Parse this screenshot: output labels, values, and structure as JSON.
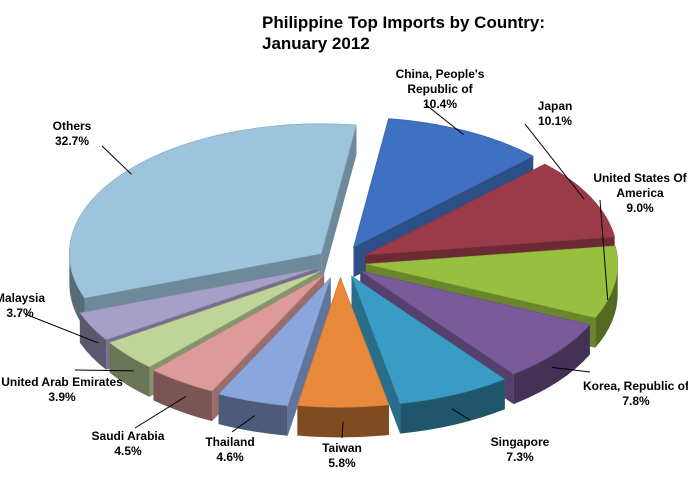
{
  "chart_data": {
    "type": "pie",
    "title": "Philippine Top Imports by Country:",
    "subtitle": "January 2012",
    "slices": [
      {
        "label_lines": [
          "China, People's",
          "Republic of"
        ],
        "value": 10.4,
        "value_text": "10.4%",
        "color": "#4070c0"
      },
      {
        "label_lines": [
          "Japan"
        ],
        "value": 10.1,
        "value_text": "10.1%",
        "color": "#9b3b4a"
      },
      {
        "label_lines": [
          "United States Of",
          "America"
        ],
        "value": 9.0,
        "value_text": "9.0%",
        "color": "#98c040"
      },
      {
        "label_lines": [
          "Korea, Republic of"
        ],
        "value": 7.8,
        "value_text": "7.8%",
        "color": "#7a5a9a"
      },
      {
        "label_lines": [
          "Singapore"
        ],
        "value": 7.3,
        "value_text": "7.3%",
        "color": "#3a9cc4"
      },
      {
        "label_lines": [
          "Taiwan"
        ],
        "value": 5.8,
        "value_text": "5.8%",
        "color": "#e8893c"
      },
      {
        "label_lines": [
          "Thailand"
        ],
        "value": 4.6,
        "value_text": "4.6%",
        "color": "#8aa6dc"
      },
      {
        "label_lines": [
          "Saudi Arabia"
        ],
        "value": 4.5,
        "value_text": "4.5%",
        "color": "#dc9a98"
      },
      {
        "label_lines": [
          "United Arab Emirates"
        ],
        "value": 3.9,
        "value_text": "3.9%",
        "color": "#c0d49a"
      },
      {
        "label_lines": [
          "Malaysia"
        ],
        "value": 3.7,
        "value_text": "3.7%",
        "color": "#a6a0c8"
      },
      {
        "label_lines": [
          "Others"
        ],
        "value": 32.7,
        "value_text": "32.7%",
        "color": "#9cc4dc"
      }
    ]
  }
}
